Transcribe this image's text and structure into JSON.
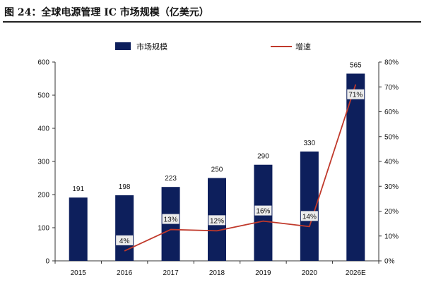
{
  "title": "图 24：全球电源管理 IC 市场规模（亿美元）",
  "colors": {
    "bar": "#0d1f5c",
    "line": "#c0392b",
    "label_bg": "#ececec"
  },
  "chart_data": {
    "type": "bar",
    "categories": [
      "2015",
      "2016",
      "2017",
      "2018",
      "2019",
      "2020",
      "2026E"
    ],
    "series": [
      {
        "name": "市场规模",
        "type": "bar",
        "axis": "left",
        "values": [
          191,
          198,
          223,
          250,
          290,
          330,
          565
        ],
        "labels": [
          "191",
          "198",
          "223",
          "250",
          "290",
          "330",
          "565"
        ]
      },
      {
        "name": "增速",
        "type": "line",
        "axis": "right",
        "values": [
          null,
          4,
          12.6,
          12.1,
          16,
          13.8,
          71
        ],
        "labels": [
          "",
          "4%",
          "13%",
          "12%",
          "16%",
          "14%",
          "71%"
        ]
      }
    ],
    "ylim_left": [
      0,
      600
    ],
    "yticks_left": [
      "0",
      "100",
      "200",
      "300",
      "400",
      "500",
      "600"
    ],
    "ylim_right": [
      0,
      80
    ],
    "yticks_right": [
      "0%",
      "10%",
      "20%",
      "30%",
      "40%",
      "50%",
      "60%",
      "70%",
      "80%"
    ],
    "legend_position": "top",
    "grid": false
  }
}
